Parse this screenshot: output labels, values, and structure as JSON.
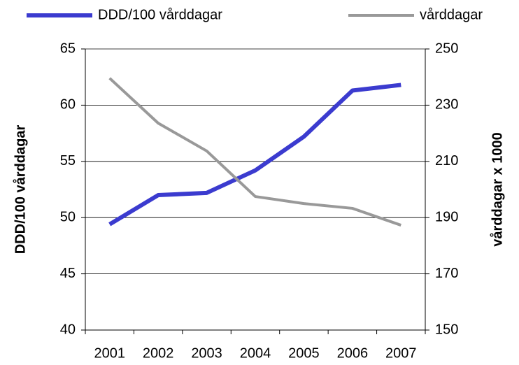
{
  "chart_data": {
    "type": "line",
    "categories": [
      "2001",
      "2002",
      "2003",
      "2004",
      "2005",
      "2006",
      "2007"
    ],
    "series": [
      {
        "name": "DDD/100 vårddagar",
        "color": "#3b3bcf",
        "values": [
          49.4,
          52.0,
          52.2,
          54.2,
          57.2,
          61.3,
          61.8
        ]
      },
      {
        "name": "vårddagar",
        "color": "#999999",
        "axis": "y2",
        "values": [
          239.6,
          223.6,
          213.7,
          197.5,
          195.0,
          193.3,
          187.3
        ]
      }
    ],
    "ylabel": "DDD/100 vårddagar",
    "y2label": "vårddagar x 1000",
    "ylim": [
      40,
      65
    ],
    "yticks": [
      40,
      45,
      50,
      55,
      60,
      65
    ],
    "y2lim": [
      150,
      250
    ],
    "y2ticks": [
      150,
      170,
      190,
      210,
      230,
      250
    ],
    "grid": true
  }
}
